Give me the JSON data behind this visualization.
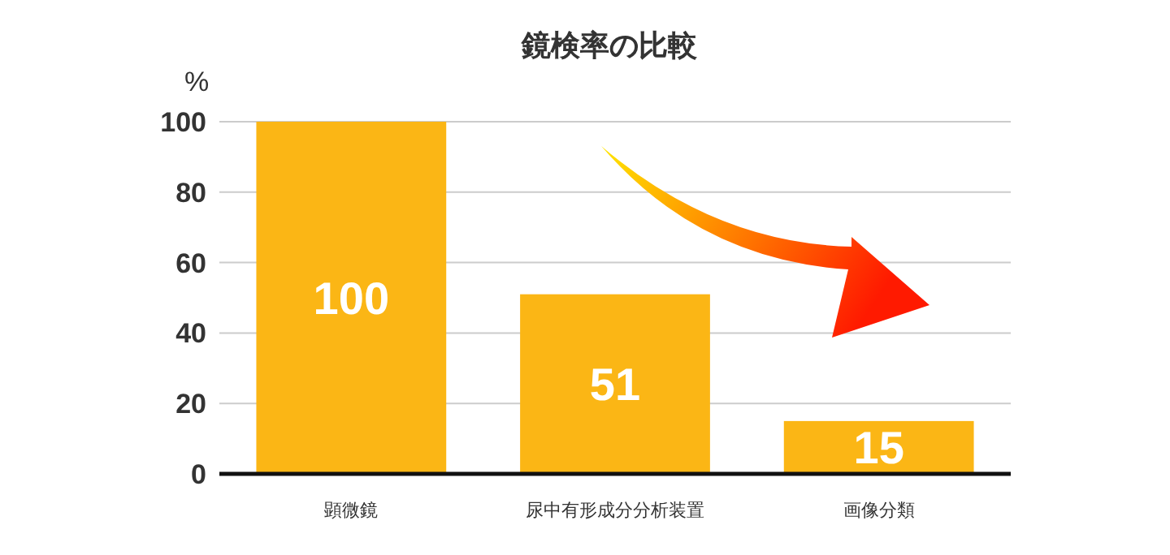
{
  "chart_data": {
    "type": "bar",
    "title": "鏡検率の比較",
    "ylabel": "%",
    "categories": [
      "顕微鏡",
      "尿中有形成分分析装置",
      "画像分類"
    ],
    "values": [
      100,
      51,
      15
    ],
    "color": "#fbb615",
    "ylim": [
      0,
      100
    ],
    "yticks": [
      0,
      20,
      40,
      60,
      80,
      100
    ],
    "grid": "y",
    "data_labels": true
  }
}
